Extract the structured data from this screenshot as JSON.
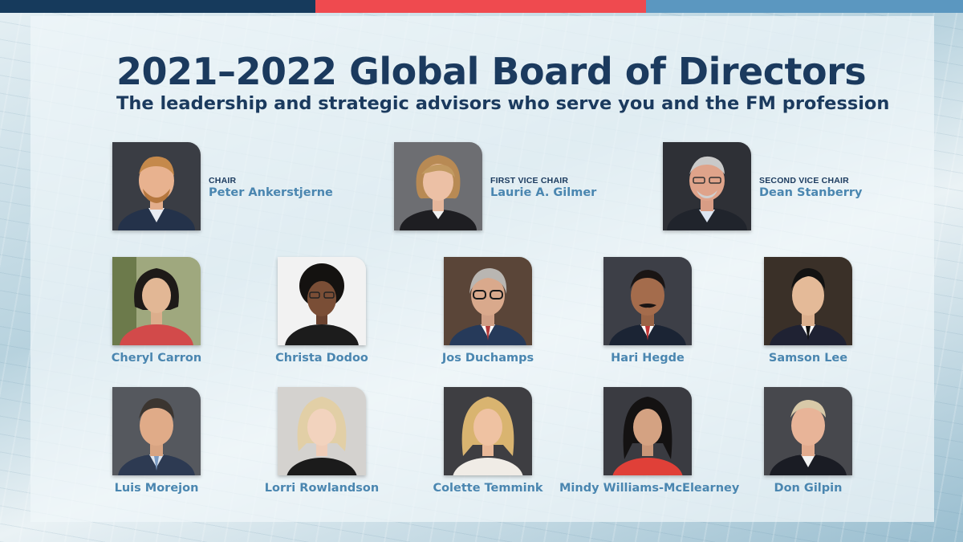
{
  "colors": {
    "bar_left": "#163a5c",
    "bar_mid": "#ef4a4f",
    "bar_right": "#5b97c0",
    "title": "#1b3a5e",
    "name": "#4a86b0"
  },
  "header": {
    "title": "2021–2022 Global Board of Directors",
    "subtitle": "The leadership and strategic advisors who serve you and the FM profession"
  },
  "officers": [
    {
      "role": "CHAIR",
      "name": "Peter Ankerstjerne"
    },
    {
      "role": "FIRST VICE CHAIR",
      "name": "Laurie A. Gilmer"
    },
    {
      "role": "SECOND VICE CHAIR",
      "name": "Dean Stanberry"
    }
  ],
  "directors_row1": [
    {
      "name": "Cheryl Carron"
    },
    {
      "name": "Christa Dodoo"
    },
    {
      "name": "Jos Duchamps"
    },
    {
      "name": "Hari Hegde"
    },
    {
      "name": "Samson Lee"
    }
  ],
  "directors_row2": [
    {
      "name": "Luis Morejon"
    },
    {
      "name": "Lorri Rowlandson"
    },
    {
      "name": "Colette Temmink"
    },
    {
      "name": "Mindy Williams-McElearney"
    },
    {
      "name": "Don Gilpin"
    }
  ]
}
